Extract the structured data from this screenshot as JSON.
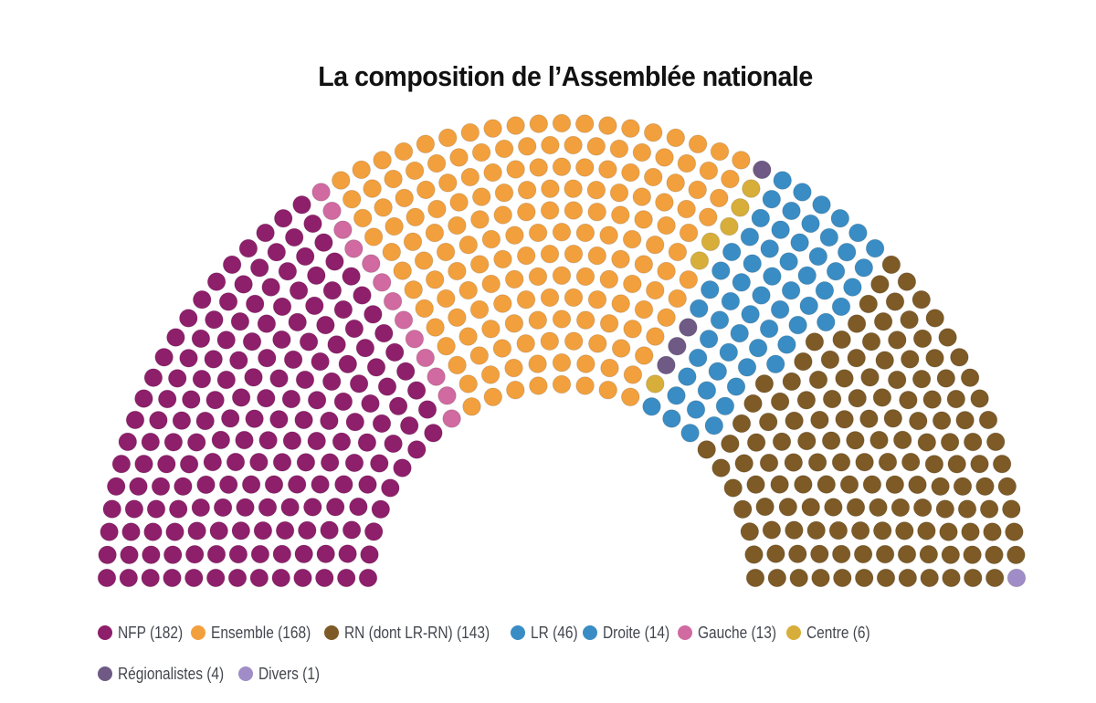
{
  "title": "La composition de l’Assemblée nationale",
  "chart_data": {
    "type": "parliament-hemicycle",
    "title": "La composition de l’Assemblée nationale",
    "total_seats": 577,
    "rows": 13,
    "series": [
      {
        "name": "NFP",
        "label": "NFP (182)",
        "seats": 182,
        "color": "#8e1f6b"
      },
      {
        "name": "Gauche",
        "label": "Gauche (13)",
        "seats": 13,
        "color": "#d06aa0"
      },
      {
        "name": "Ensemble",
        "label": "Ensemble (168)",
        "seats": 168,
        "color": "#f2a03d"
      },
      {
        "name": "Centre",
        "label": "Centre (6)",
        "seats": 6,
        "color": "#d7ae3a"
      },
      {
        "name": "Régionalistes",
        "label": "Régionalistes (4)",
        "seats": 4,
        "color": "#6e5a84"
      },
      {
        "name": "LR",
        "label": "LR (46)",
        "seats": 46,
        "color": "#3a8dc4"
      },
      {
        "name": "Droite",
        "label": "Droite (14)",
        "seats": 14,
        "color": "#3a8dc4"
      },
      {
        "name": "RN (dont LR-RN)",
        "label": "RN (dont LR-RN) (143)",
        "seats": 143,
        "color": "#7d5a26"
      },
      {
        "name": "Divers",
        "label": "Divers (1)",
        "seats": 1,
        "color": "#a08cc6"
      }
    ],
    "legend_position": "bottom"
  },
  "legend": {
    "row1": [
      {
        "label": "NFP (182)",
        "color": "#8e1f6b"
      },
      {
        "label": "Ensemble (168)",
        "color": "#f2a03d"
      },
      {
        "label": "RN (dont LR-RN) (143)",
        "color": "#7d5a26"
      },
      {
        "label": "LR (46)",
        "color": "#3a8dc4"
      },
      {
        "label": "Droite (14)",
        "color": "#3a8dc4"
      },
      {
        "label": "Gauche (13)",
        "color": "#d06aa0"
      },
      {
        "label": "Centre (6)",
        "color": "#d7ae3a"
      }
    ],
    "row2": [
      {
        "label": "Régionalistes (4)",
        "color": "#6e5a84"
      },
      {
        "label": "Divers (1)",
        "color": "#a08cc6"
      }
    ]
  }
}
